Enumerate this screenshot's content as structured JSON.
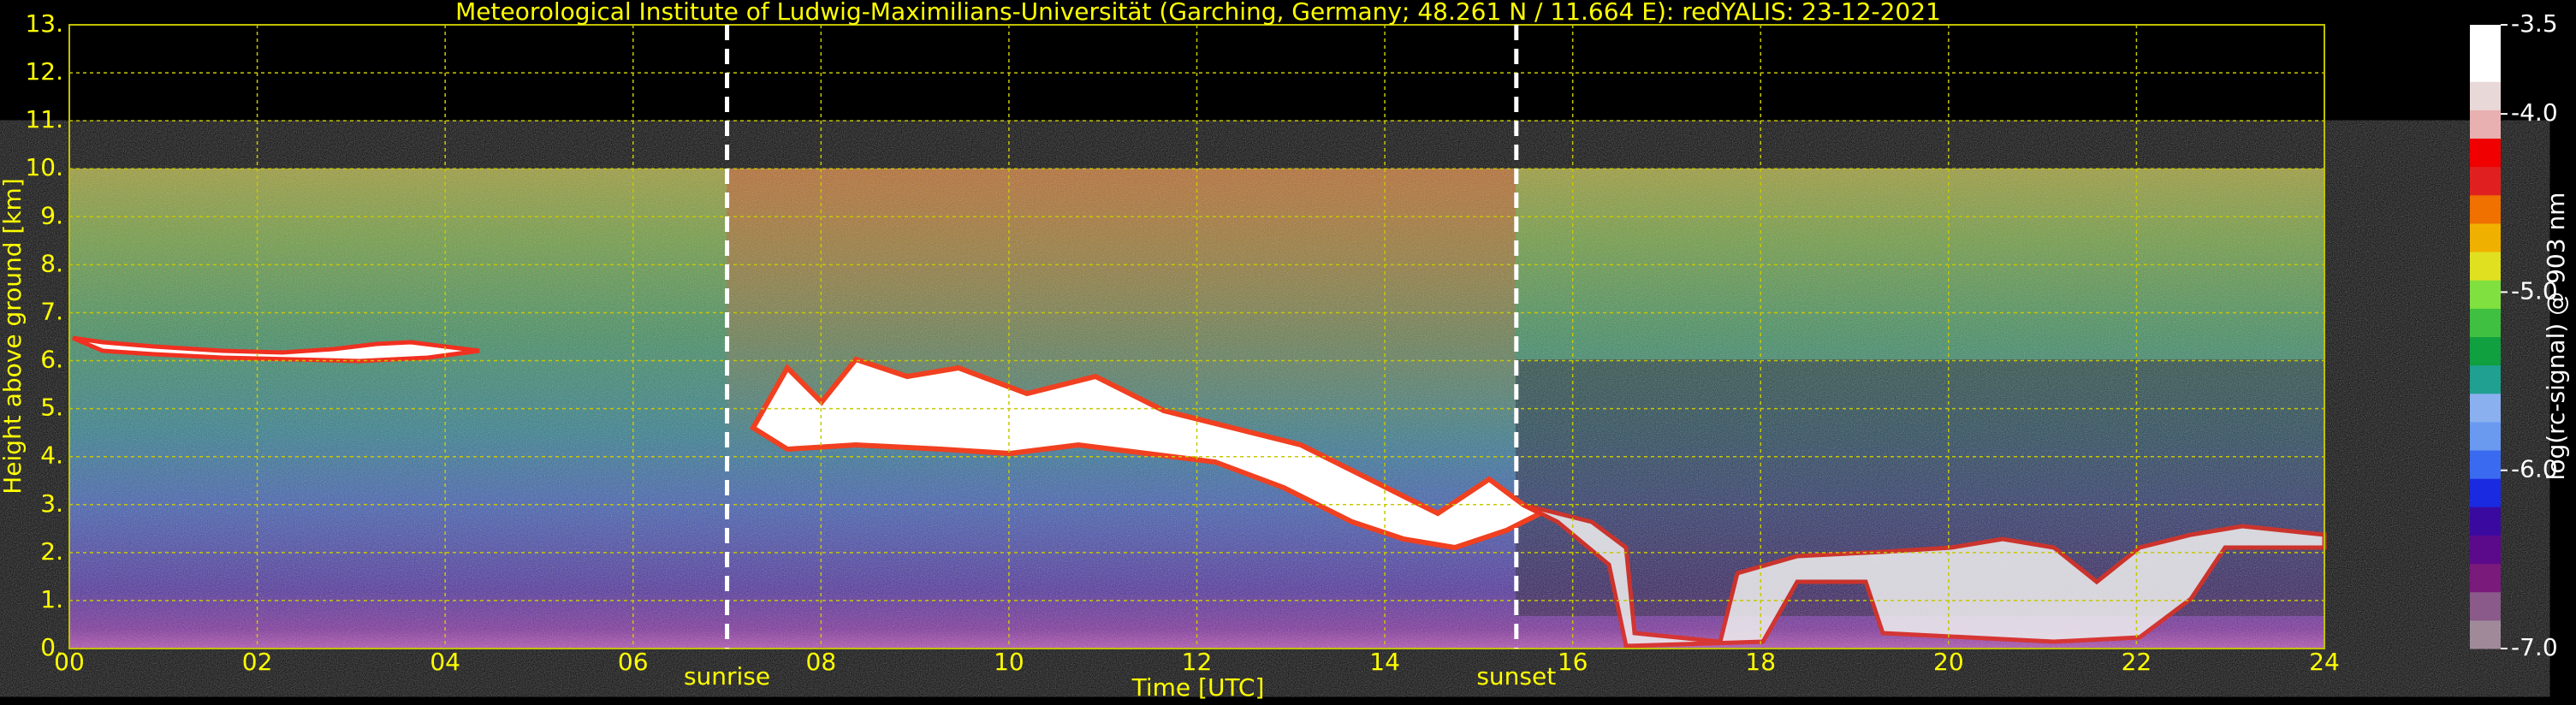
{
  "chart_data": {
    "type": "heatmap",
    "title": "Meteorological Institute of Ludwig-Maximilians-Universität (Garching, Germany; 48.261 N / 11.664 E):    redYALIS: 23-12-2021",
    "xlabel": "Time [UTC]",
    "ylabel": "Height above ground [km]",
    "xlim": [
      0,
      24
    ],
    "ylim": [
      0,
      13
    ],
    "xticks": [
      {
        "value": 0,
        "label": "00"
      },
      {
        "value": 2,
        "label": "02"
      },
      {
        "value": 4,
        "label": "04"
      },
      {
        "value": 6,
        "label": "06"
      },
      {
        "value": 8,
        "label": "08"
      },
      10,
      12,
      14,
      16,
      18,
      20,
      22,
      24
    ],
    "yticks": [
      {
        "value": 0,
        "label": "0."
      },
      {
        "value": 1,
        "label": "1."
      },
      {
        "value": 2,
        "label": "2."
      },
      {
        "value": 3,
        "label": "3."
      },
      {
        "value": 4,
        "label": "4."
      },
      {
        "value": 5,
        "label": "5."
      },
      {
        "value": 6,
        "label": "6."
      },
      {
        "value": 7,
        "label": "7."
      },
      {
        "value": 8,
        "label": "8."
      },
      {
        "value": 9,
        "label": "9."
      },
      {
        "value": 10,
        "label": "10."
      },
      {
        "value": 11,
        "label": "11."
      },
      {
        "value": 12,
        "label": "12."
      },
      {
        "value": 13,
        "label": "13."
      }
    ],
    "grid": true,
    "annotations": [
      {
        "x": 7.0,
        "label": "sunrise"
      },
      {
        "x": 15.4,
        "label": "sunset"
      }
    ],
    "colorbar": {
      "label": "log(rc-signal) @ 903 nm",
      "lim": [
        -7.0,
        -3.5
      ],
      "ticks": [
        {
          "value": -7.0,
          "label": "-7.0"
        },
        {
          "value": -6.0,
          "label": "-6.0"
        },
        {
          "value": -5.0,
          "label": "-5.0"
        },
        {
          "value": -4.0,
          "label": "-4.0"
        },
        {
          "value": -3.5,
          "label": "-3.5"
        }
      ],
      "colors": [
        "#a08a9a",
        "#8a5a8a",
        "#7a1a7a",
        "#5a0a8a",
        "#3a0aa0",
        "#1a2ae0",
        "#3a6af0",
        "#6a9af0",
        "#8ab0f0",
        "#20a090",
        "#10a040",
        "#40c040",
        "#80e040",
        "#e0e020",
        "#f0b000",
        "#f07000",
        "#e02020",
        "#f00000",
        "#e8b0b0",
        "#e8d8d8",
        "#ffffff",
        "#ffffff"
      ]
    }
  }
}
